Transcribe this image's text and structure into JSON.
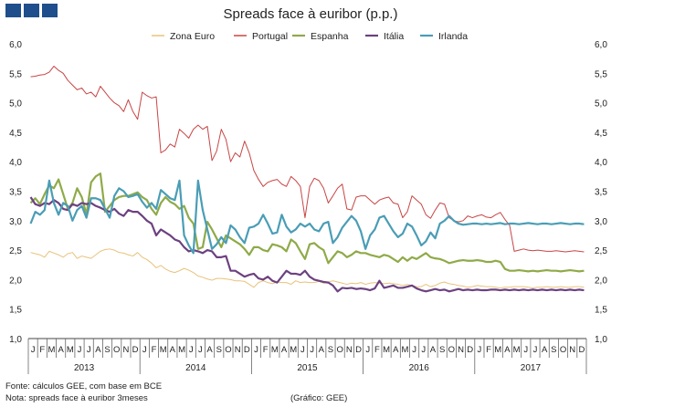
{
  "brand": {
    "icon": "brand-squares-icon",
    "color": "#1f4e8c"
  },
  "chart_data": {
    "type": "line",
    "title": "Spreads face à euribor (p.p.)",
    "ylim": [
      1.0,
      6.0
    ],
    "yticks": [
      "1,0",
      "1,5",
      "2,0",
      "2,5",
      "3,0",
      "3,5",
      "4,0",
      "4,5",
      "5,0",
      "5,5",
      "6,0"
    ],
    "ytick_values": [
      1.0,
      1.5,
      2.0,
      2.5,
      3.0,
      3.5,
      4.0,
      4.5,
      5.0,
      5.5,
      6.0
    ],
    "x_month_labels": [
      "J",
      "F",
      "M",
      "A",
      "M",
      "J",
      "J",
      "A",
      "S",
      "O",
      "N",
      "D"
    ],
    "years": [
      "2013",
      "2014",
      "2015",
      "2016",
      "2017"
    ],
    "points_per_month": 2,
    "series": [
      {
        "name": "Zona Euro",
        "color": "#e8c27a",
        "width": 1,
        "values": [
          2.46,
          2.44,
          2.42,
          2.38,
          2.48,
          2.45,
          2.42,
          2.38,
          2.44,
          2.46,
          2.36,
          2.4,
          2.38,
          2.36,
          2.42,
          2.48,
          2.51,
          2.52,
          2.5,
          2.46,
          2.45,
          2.42,
          2.4,
          2.46,
          2.38,
          2.34,
          2.28,
          2.2,
          2.24,
          2.18,
          2.14,
          2.12,
          2.15,
          2.19,
          2.16,
          2.12,
          2.06,
          2.04,
          2.01,
          1.99,
          2.02,
          2.02,
          2.01,
          2.0,
          1.98,
          1.98,
          1.97,
          1.92,
          1.87,
          1.95,
          1.98,
          1.95,
          1.93,
          1.96,
          1.95,
          1.95,
          1.92,
          1.98,
          1.95,
          1.96,
          1.95,
          1.95,
          1.97,
          1.94,
          1.96,
          1.98,
          1.96,
          1.94,
          1.92,
          1.94,
          1.93,
          1.95,
          1.92,
          1.94,
          1.95,
          1.94,
          1.93,
          1.94,
          1.93,
          1.92,
          1.9,
          1.92,
          1.9,
          1.88,
          1.88,
          1.92,
          1.88,
          1.9,
          1.94,
          1.96,
          1.93,
          1.92,
          1.9,
          1.89,
          1.87,
          1.88,
          1.9,
          1.89,
          1.88,
          1.88,
          1.87,
          1.86,
          1.87,
          1.87,
          1.88,
          1.88,
          1.88,
          1.87,
          1.86,
          1.87,
          1.87,
          1.88,
          1.87,
          1.87,
          1.88,
          1.87,
          1.87,
          1.88,
          1.88,
          1.87
        ]
      },
      {
        "name": "Portugal",
        "color": "#c84545",
        "width": 1,
        "values": [
          5.44,
          5.45,
          5.47,
          5.48,
          5.52,
          5.62,
          5.55,
          5.5,
          5.38,
          5.3,
          5.22,
          5.25,
          5.15,
          5.18,
          5.1,
          5.28,
          5.18,
          5.08,
          5.0,
          4.95,
          4.85,
          5.05,
          4.85,
          4.72,
          5.18,
          5.12,
          5.08,
          5.1,
          4.15,
          4.2,
          4.3,
          4.25,
          4.55,
          4.48,
          4.4,
          4.55,
          4.62,
          4.55,
          4.6,
          4.02,
          4.18,
          4.55,
          4.38,
          4.0,
          4.15,
          4.08,
          4.35,
          4.15,
          3.85,
          3.7,
          3.58,
          3.65,
          3.68,
          3.7,
          3.62,
          3.58,
          3.75,
          3.68,
          3.58,
          3.05,
          3.58,
          3.72,
          3.68,
          3.55,
          3.3,
          3.42,
          3.55,
          3.62,
          3.2,
          3.18,
          3.4,
          3.42,
          3.42,
          3.35,
          3.28,
          3.35,
          3.38,
          3.4,
          3.3,
          3.28,
          3.05,
          3.15,
          3.42,
          3.35,
          3.28,
          3.1,
          3.04,
          3.18,
          3.3,
          3.28,
          3.05,
          3.0,
          2.98,
          3.0,
          3.08,
          3.05,
          3.08,
          3.1,
          3.06,
          3.05,
          3.1,
          3.14,
          3.02,
          2.92,
          2.48,
          2.5,
          2.52,
          2.5,
          2.49,
          2.5,
          2.49,
          2.48,
          2.48,
          2.49,
          2.48,
          2.47,
          2.48,
          2.49,
          2.48,
          2.47
        ]
      },
      {
        "name": "Espanha",
        "color": "#8faa48",
        "width": 2.2,
        "values": [
          3.3,
          3.38,
          3.28,
          3.45,
          3.6,
          3.55,
          3.7,
          3.45,
          3.2,
          3.3,
          3.55,
          3.4,
          3.1,
          3.65,
          3.75,
          3.8,
          3.15,
          3.25,
          3.35,
          3.4,
          3.42,
          3.42,
          3.45,
          3.48,
          3.4,
          3.35,
          3.2,
          3.1,
          3.3,
          3.4,
          3.32,
          3.28,
          3.2,
          3.25,
          3.05,
          2.95,
          2.52,
          2.55,
          2.98,
          2.85,
          2.7,
          2.55,
          2.75,
          2.7,
          2.65,
          2.6,
          2.52,
          2.42,
          2.55,
          2.55,
          2.5,
          2.48,
          2.6,
          2.58,
          2.55,
          2.48,
          2.68,
          2.62,
          2.48,
          2.35,
          2.6,
          2.62,
          2.55,
          2.5,
          2.28,
          2.38,
          2.48,
          2.45,
          2.38,
          2.42,
          2.48,
          2.45,
          2.45,
          2.42,
          2.4,
          2.38,
          2.42,
          2.4,
          2.35,
          2.3,
          2.38,
          2.32,
          2.38,
          2.35,
          2.4,
          2.45,
          2.38,
          2.36,
          2.35,
          2.32,
          2.28,
          2.3,
          2.32,
          2.33,
          2.32,
          2.32,
          2.33,
          2.32,
          2.3,
          2.3,
          2.32,
          2.3,
          2.18,
          2.15,
          2.15,
          2.16,
          2.15,
          2.14,
          2.15,
          2.14,
          2.15,
          2.16,
          2.15,
          2.15,
          2.14,
          2.15,
          2.16,
          2.15,
          2.14,
          2.15
        ]
      },
      {
        "name": "Itália",
        "color": "#6c4180",
        "width": 2.2,
        "values": [
          3.4,
          3.28,
          3.25,
          3.3,
          3.28,
          3.35,
          3.3,
          3.2,
          3.18,
          3.28,
          3.25,
          3.3,
          3.28,
          3.3,
          3.25,
          3.22,
          3.18,
          3.15,
          3.2,
          3.12,
          3.08,
          3.18,
          3.15,
          3.15,
          3.08,
          3.0,
          2.95,
          2.75,
          2.85,
          2.8,
          2.75,
          2.68,
          2.65,
          2.55,
          2.48,
          2.5,
          2.48,
          2.45,
          2.5,
          2.48,
          2.38,
          2.38,
          2.4,
          2.15,
          2.15,
          2.1,
          2.05,
          2.08,
          2.1,
          2.02,
          2.0,
          2.05,
          1.98,
          1.95,
          2.05,
          2.15,
          2.1,
          2.1,
          2.08,
          2.15,
          2.05,
          2.0,
          1.98,
          1.96,
          1.95,
          1.9,
          1.8,
          1.86,
          1.85,
          1.86,
          1.84,
          1.85,
          1.84,
          1.82,
          1.85,
          1.98,
          1.86,
          1.88,
          1.9,
          1.86,
          1.86,
          1.88,
          1.9,
          1.85,
          1.82,
          1.8,
          1.82,
          1.84,
          1.82,
          1.83,
          1.8,
          1.82,
          1.84,
          1.82,
          1.83,
          1.82,
          1.83,
          1.82,
          1.82,
          1.83,
          1.83,
          1.82,
          1.83,
          1.82,
          1.83,
          1.82,
          1.83,
          1.82,
          1.83,
          1.82,
          1.83,
          1.82,
          1.83,
          1.82,
          1.83,
          1.82,
          1.83,
          1.82,
          1.83,
          1.82
        ]
      },
      {
        "name": "Irlanda",
        "color": "#4a9db5",
        "width": 2.2,
        "values": [
          2.95,
          3.15,
          3.1,
          3.18,
          3.68,
          3.3,
          3.1,
          3.3,
          3.25,
          3.0,
          3.18,
          3.25,
          3.05,
          3.38,
          3.38,
          3.35,
          3.2,
          3.05,
          3.42,
          3.55,
          3.5,
          3.4,
          3.42,
          3.45,
          3.32,
          3.22,
          3.3,
          3.2,
          3.52,
          3.45,
          3.38,
          3.35,
          3.68,
          2.75,
          2.58,
          2.45,
          3.68,
          3.18,
          2.85,
          2.52,
          2.6,
          2.72,
          2.62,
          2.92,
          2.85,
          2.72,
          2.62,
          2.88,
          2.9,
          2.95,
          3.1,
          2.95,
          2.78,
          2.8,
          3.1,
          2.9,
          2.8,
          2.85,
          2.95,
          2.9,
          2.95,
          2.85,
          2.82,
          2.95,
          2.98,
          2.62,
          2.72,
          2.88,
          2.98,
          3.08,
          3.0,
          2.82,
          2.52,
          2.75,
          2.85,
          3.05,
          3.08,
          2.95,
          2.82,
          2.72,
          2.78,
          2.95,
          2.9,
          2.75,
          2.58,
          2.65,
          2.8,
          2.7,
          2.95,
          3.0,
          3.08,
          3.0,
          2.95,
          2.93,
          2.94,
          2.95,
          2.95,
          2.94,
          2.95,
          2.94,
          2.95,
          2.96,
          2.94,
          2.95,
          2.95,
          2.94,
          2.95,
          2.96,
          2.95,
          2.94,
          2.95,
          2.95,
          2.94,
          2.95,
          2.96,
          2.95,
          2.94,
          2.95,
          2.95,
          2.94
        ]
      }
    ]
  },
  "footer": {
    "source": "Fonte: cálculos GEE, com base em BCE",
    "note": "Nota: spreads face à euribor 3meses",
    "credit": "(Gráfico: GEE)"
  }
}
